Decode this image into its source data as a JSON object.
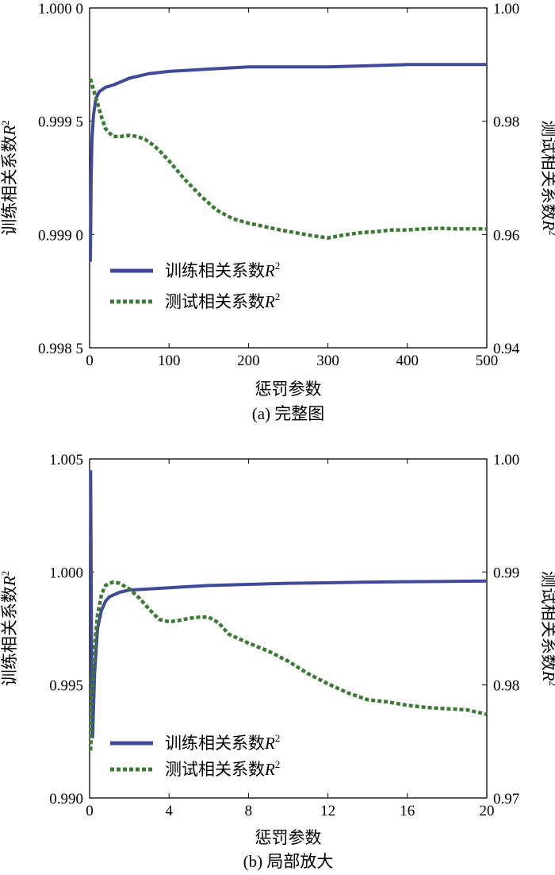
{
  "chart_data": [
    {
      "type": "line",
      "caption": "(a) 完整图",
      "xlabel": "惩罚参数",
      "ylabel_left": "训练相关系数R",
      "ylabel_right": "测试相关系数R",
      "superscript": "2",
      "xlim": [
        0,
        500
      ],
      "ylim_left": [
        0.9985,
        1.0
      ],
      "ylim_right": [
        0.94,
        1.0
      ],
      "x_ticks": [
        "0",
        "100",
        "200",
        "300",
        "400",
        "500"
      ],
      "y_ticks_left": [
        "0.998 5",
        "0.999 0",
        "0.999 5",
        "1.000 0"
      ],
      "y_ticks_right": [
        "0.94",
        "0.96",
        "0.98",
        "1.00"
      ],
      "legend": "lower-left",
      "grid": false,
      "series": [
        {
          "name": "训练相关系数R",
          "axis": "left",
          "style": "solid",
          "color": "#3f4b9a",
          "x": [
            1,
            2,
            3,
            5,
            8,
            12,
            20,
            30,
            50,
            75,
            100,
            150,
            200,
            300,
            400,
            500
          ],
          "y": [
            0.99888,
            0.99925,
            0.99942,
            0.99953,
            0.9996,
            0.99963,
            0.99965,
            0.99966,
            0.99969,
            0.99971,
            0.99972,
            0.99973,
            0.99974,
            0.99974,
            0.99975,
            0.99975
          ]
        },
        {
          "name": "测试相关系数R",
          "axis": "right",
          "style": "dotted",
          "color": "#3b7a32",
          "x": [
            1,
            5,
            10,
            15,
            20,
            25,
            30,
            40,
            50,
            60,
            70,
            80,
            90,
            100,
            120,
            140,
            160,
            180,
            200,
            220,
            240,
            260,
            280,
            300,
            320,
            340,
            360,
            380,
            400,
            420,
            440,
            460,
            480,
            500
          ],
          "y": [
            0.9875,
            0.9855,
            0.9832,
            0.9808,
            0.9787,
            0.9779,
            0.9773,
            0.9773,
            0.9775,
            0.9773,
            0.9768,
            0.9758,
            0.9745,
            0.973,
            0.9697,
            0.9668,
            0.9643,
            0.9628,
            0.962,
            0.9614,
            0.9608,
            0.9603,
            0.9598,
            0.9594,
            0.9599,
            0.9603,
            0.9605,
            0.9608,
            0.9608,
            0.961,
            0.9611,
            0.961,
            0.961,
            0.961
          ]
        }
      ]
    },
    {
      "type": "line",
      "caption": "(b) 局部放大",
      "xlabel": "惩罚参数",
      "ylabel_left": "训练相关系数R",
      "ylabel_right": "测试相关系数R",
      "superscript": "2",
      "xlim": [
        0,
        20
      ],
      "ylim_left": [
        0.99,
        1.005
      ],
      "ylim_right": [
        0.97,
        1.0
      ],
      "x_ticks": [
        "0",
        "4",
        "8",
        "12",
        "16",
        "20"
      ],
      "y_ticks_left": [
        "0.990",
        "0.995",
        "1.000",
        "1.005"
      ],
      "y_ticks_right": [
        "0.97",
        "0.98",
        "0.99",
        "1.00"
      ],
      "legend": "lower-left",
      "grid": false,
      "series": [
        {
          "name": "训练相关系数R",
          "axis": "left",
          "style": "solid",
          "color": "#3f4b9a",
          "x": [
            0.05,
            0.1,
            0.15,
            0.25,
            0.4,
            0.6,
            0.8,
            1,
            1.5,
            2,
            3,
            4,
            5,
            6,
            8,
            10,
            12,
            14,
            16,
            18,
            20
          ],
          "y": [
            1.0045,
            0.9965,
            0.9927,
            0.9955,
            0.9975,
            0.9983,
            0.9987,
            0.9989,
            0.9991,
            0.9992,
            0.99925,
            0.9993,
            0.99935,
            0.9994,
            0.99945,
            0.9995,
            0.99952,
            0.99955,
            0.99957,
            0.99958,
            0.9996
          ]
        },
        {
          "name": "测试相关系数R",
          "axis": "right",
          "style": "dotted",
          "color": "#3b7a32",
          "x": [
            0.05,
            0.1,
            0.2,
            0.3,
            0.4,
            0.6,
            0.8,
            1,
            1.2,
            1.5,
            2,
            2.5,
            3,
            3.5,
            4,
            4.5,
            5,
            5.5,
            6,
            6.5,
            7,
            8,
            9,
            10,
            11,
            12,
            13,
            14,
            15,
            16,
            17,
            18,
            19,
            20
          ],
          "y": [
            0.9742,
            0.9785,
            0.9812,
            0.9843,
            0.9862,
            0.988,
            0.9888,
            0.989,
            0.9891,
            0.989,
            0.9885,
            0.9877,
            0.9867,
            0.9858,
            0.9856,
            0.9857,
            0.9859,
            0.986,
            0.986,
            0.9855,
            0.9845,
            0.9837,
            0.983,
            0.9821,
            0.981,
            0.9801,
            0.9793,
            0.9787,
            0.9785,
            0.9782,
            0.978,
            0.9779,
            0.9778,
            0.9774
          ]
        }
      ]
    }
  ]
}
